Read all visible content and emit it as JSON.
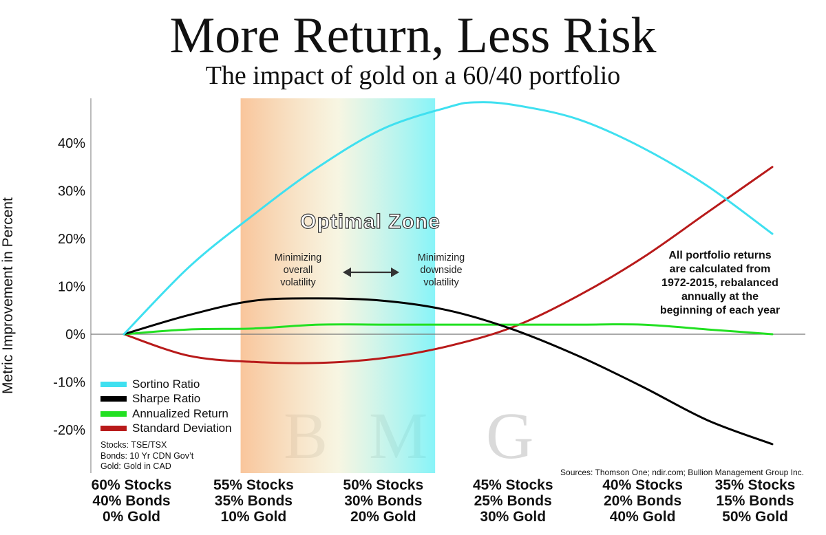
{
  "header": {
    "title": "More Return, Less Risk",
    "subtitle": "The impact of gold on a 60/40 portfolio"
  },
  "chart_data": {
    "type": "line",
    "title": "More Return, Less Risk",
    "subtitle": "The impact of gold on a 60/40 portfolio",
    "ylabel": "Metric Improvement in Percent",
    "xlabel": "",
    "x": [
      0,
      10,
      20,
      30,
      40,
      50
    ],
    "x_unit": "% Gold",
    "categories": [
      [
        "60% Stocks",
        "40% Bonds",
        "0% Gold"
      ],
      [
        "55% Stocks",
        "35% Bonds",
        "10% Gold"
      ],
      [
        "50% Stocks",
        "30% Bonds",
        "20% Gold"
      ],
      [
        "45% Stocks",
        "25% Bonds",
        "30% Gold"
      ],
      [
        "40% Stocks",
        "20% Bonds",
        "40% Gold"
      ],
      [
        "35% Stocks",
        "15% Bonds",
        "50% Gold"
      ]
    ],
    "yticks": [
      -20,
      -10,
      0,
      10,
      20,
      30,
      40
    ],
    "ytick_labels": [
      "-20%",
      "-10%",
      "0%",
      "10%",
      "20%",
      "30%",
      "40%"
    ],
    "ylim": [
      -23,
      49
    ],
    "xlim": [
      0,
      50
    ],
    "legend_position": "bottom-left",
    "series": [
      {
        "name": "Sortino Ratio",
        "color": "#3fe0f0",
        "x": [
          0,
          5,
          10,
          15,
          20,
          25,
          27,
          30,
          35,
          40,
          45,
          50
        ],
        "values": [
          0,
          14,
          25,
          35,
          43,
          47.5,
          48.5,
          48,
          45,
          39,
          31,
          21
        ]
      },
      {
        "name": "Sharpe Ratio",
        "color": "#000000",
        "x": [
          0,
          5,
          10,
          15,
          20,
          25,
          30,
          35,
          40,
          45,
          50
        ],
        "values": [
          0,
          4,
          7,
          7.5,
          7,
          5,
          1,
          -4.5,
          -11,
          -18,
          -23
        ]
      },
      {
        "name": "Annualized Return",
        "color": "#22e022",
        "x": [
          0,
          5,
          10,
          15,
          20,
          25,
          30,
          35,
          40,
          45,
          50
        ],
        "values": [
          0,
          1,
          1.2,
          2,
          2,
          2,
          2,
          2,
          2,
          1,
          0
        ]
      },
      {
        "name": "Standard Deviation",
        "color": "#b81a1a",
        "x": [
          0,
          5,
          10,
          15,
          20,
          25,
          30,
          35,
          40,
          45,
          50
        ],
        "values": [
          0,
          -4.5,
          -5.8,
          -6,
          -5,
          -2.5,
          1.5,
          8,
          16,
          25.5,
          35
        ]
      }
    ],
    "optimal_zone": {
      "label": "Optimal Zone",
      "x_range": [
        9,
        24
      ],
      "left_text": [
        "Minimizing",
        "overall",
        "volatility"
      ],
      "right_text": [
        "Minimizing",
        "downside",
        "volatility"
      ]
    },
    "annotation": [
      "All portfolio returns",
      "are calculated from",
      "1972-2015, rebalanced",
      "annually at the",
      "beginning of each year"
    ],
    "footnotes": [
      "Stocks: TSE/TSX",
      "Bonds: 10 Yr CDN Gov’t",
      "Gold: Gold in CAD"
    ],
    "sources": "Sources: Thomson One; ndir.com; Bullion Management Group Inc.",
    "watermark": [
      "B",
      "M",
      "G"
    ]
  }
}
